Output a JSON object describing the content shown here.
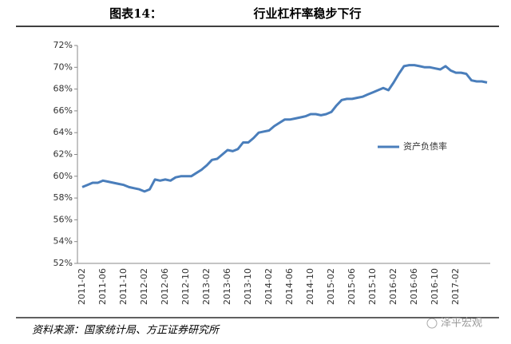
{
  "chart_data": {
    "type": "line",
    "figure_label": "图表14：",
    "title": "行业杠杆率稳步下行",
    "source": "资料来源：国家统计局、方正证券研究所",
    "watermark": "泽平宏观",
    "categories": [
      "2011-02",
      null,
      null,
      null,
      "2011-06",
      null,
      null,
      null,
      "2011-10",
      null,
      null,
      null,
      "2012-02",
      null,
      null,
      null,
      "2012-06",
      null,
      null,
      null,
      "2012-10",
      null,
      null,
      null,
      "2013-02",
      null,
      null,
      null,
      "2013-06",
      null,
      null,
      null,
      "2013-10",
      null,
      null,
      null,
      "2014-02",
      null,
      null,
      null,
      "2014-06",
      null,
      null,
      null,
      "2014-10",
      null,
      null,
      null,
      "2015-02",
      null,
      null,
      null,
      "2015-06",
      null,
      null,
      null,
      "2015-10",
      null,
      null,
      null,
      "2016-02",
      null,
      null,
      null,
      "2016-06",
      null,
      null,
      null,
      "2016-10",
      null,
      null,
      null,
      "2017-02",
      null,
      null,
      null,
      null,
      null,
      null
    ],
    "series": [
      {
        "name": "资产负债率",
        "color": "#4a7ebb",
        "values": [
          59.0,
          59.2,
          59.4,
          59.4,
          59.6,
          59.5,
          59.4,
          59.3,
          59.2,
          59.0,
          58.9,
          58.8,
          58.6,
          58.8,
          59.7,
          59.6,
          59.7,
          59.6,
          59.9,
          60.0,
          60.0,
          60.0,
          60.3,
          60.6,
          61.0,
          61.5,
          61.6,
          62.0,
          62.4,
          62.3,
          62.5,
          63.1,
          63.1,
          63.5,
          64.0,
          64.1,
          64.2,
          64.6,
          64.9,
          65.2,
          65.2,
          65.3,
          65.4,
          65.5,
          65.7,
          65.7,
          65.6,
          65.7,
          65.9,
          66.5,
          67.0,
          67.1,
          67.1,
          67.2,
          67.3,
          67.5,
          67.7,
          67.9,
          68.1,
          67.9,
          68.6,
          69.4,
          70.1,
          70.2,
          70.2,
          70.1,
          70.0,
          70.0,
          69.9,
          69.8,
          70.1,
          69.7,
          69.5,
          69.5,
          69.4,
          68.8,
          68.7,
          68.7,
          68.6
        ]
      }
    ],
    "ylim": [
      52,
      72
    ],
    "yticks": [
      {
        "value": 52,
        "label": "52%"
      },
      {
        "value": 54,
        "label": "54%"
      },
      {
        "value": 56,
        "label": "56%"
      },
      {
        "value": 58,
        "label": "58%"
      },
      {
        "value": 60,
        "label": "60%"
      },
      {
        "value": 62,
        "label": "62%"
      },
      {
        "value": 64,
        "label": "64%"
      },
      {
        "value": 66,
        "label": "66%"
      },
      {
        "value": 68,
        "label": "68%"
      },
      {
        "value": 70,
        "label": "70%"
      },
      {
        "value": 72,
        "label": "72%"
      }
    ],
    "grid": false,
    "legend": "right"
  }
}
